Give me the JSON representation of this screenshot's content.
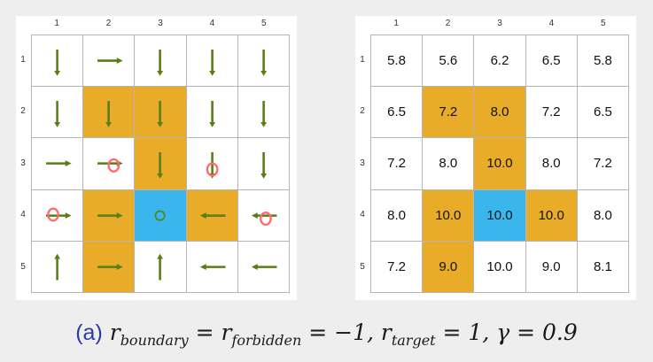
{
  "colors": {
    "forbidden": "#e8ac28",
    "target": "#3ab6ec",
    "arrow": "#5a7d16",
    "stay": "#ff6a6a",
    "stay_target": "#4b8a1a"
  },
  "col_labels": [
    "1",
    "2",
    "3",
    "4",
    "5"
  ],
  "row_labels": [
    "1",
    "2",
    "3",
    "4",
    "5"
  ],
  "cell_types": [
    [
      "normal",
      "normal",
      "normal",
      "normal",
      "normal"
    ],
    [
      "normal",
      "forbidden",
      "forbidden",
      "normal",
      "normal"
    ],
    [
      "normal",
      "normal",
      "forbidden",
      "normal",
      "normal"
    ],
    [
      "normal",
      "forbidden",
      "target",
      "forbidden",
      "normal"
    ],
    [
      "normal",
      "forbidden",
      "normal",
      "normal",
      "normal"
    ]
  ],
  "policy": [
    [
      [
        "down"
      ],
      [
        "right"
      ],
      [
        "down"
      ],
      [
        "down"
      ],
      [
        "down"
      ]
    ],
    [
      [
        "down"
      ],
      [
        "down"
      ],
      [
        "down"
      ],
      [
        "down"
      ],
      [
        "down"
      ]
    ],
    [
      [
        "right"
      ],
      [
        "right",
        "stay"
      ],
      [
        "down"
      ],
      [
        "down",
        "stay"
      ],
      [
        "down"
      ]
    ],
    [
      [
        "right",
        "stay"
      ],
      [
        "right"
      ],
      [
        "stay"
      ],
      [
        "left"
      ],
      [
        "left",
        "stay"
      ]
    ],
    [
      [
        "up"
      ],
      [
        "right"
      ],
      [
        "up"
      ],
      [
        "left"
      ],
      [
        "left"
      ]
    ]
  ],
  "state_values": [
    [
      "5.8",
      "5.6",
      "6.2",
      "6.5",
      "5.8"
    ],
    [
      "6.5",
      "7.2",
      "8.0",
      "7.2",
      "6.5"
    ],
    [
      "7.2",
      "8.0",
      "10.0",
      "8.0",
      "7.2"
    ],
    [
      "8.0",
      "10.0",
      "10.0",
      "10.0",
      "8.0"
    ],
    [
      "7.2",
      "9.0",
      "10.0",
      "9.0",
      "8.1"
    ]
  ],
  "caption": {
    "tag": "(a)",
    "r": "r",
    "boundary_sub": "boundary",
    "forbidden_sub": "forbidden",
    "target_sub": "target",
    "eq_minus_one": " = −1, ",
    "eq_one": " = 1, ",
    "gamma_part": "γ = 0.9"
  }
}
